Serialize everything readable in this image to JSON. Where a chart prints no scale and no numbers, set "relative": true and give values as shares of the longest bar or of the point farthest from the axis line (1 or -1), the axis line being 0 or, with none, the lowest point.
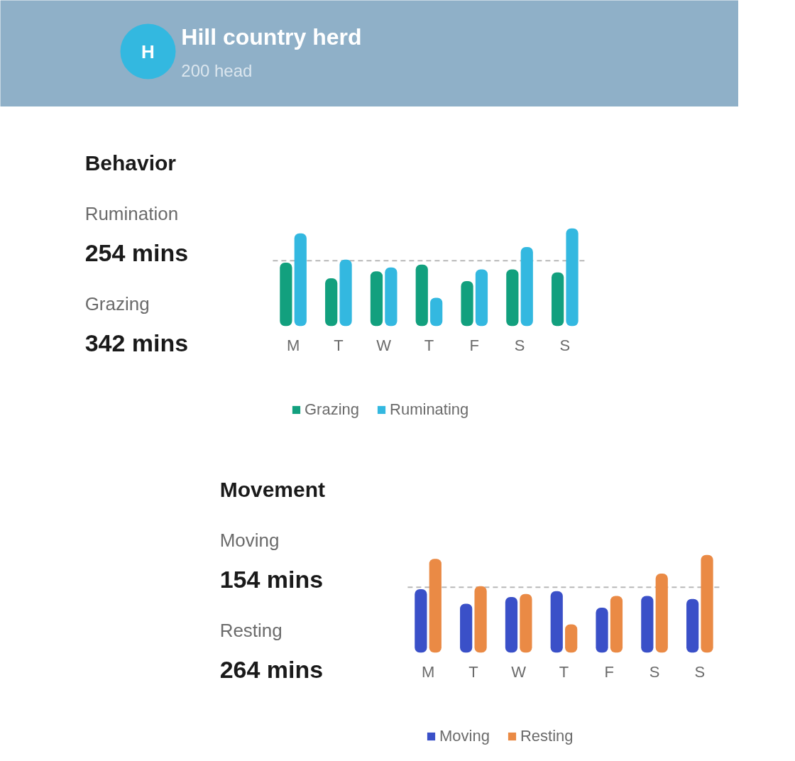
{
  "chart_data": [
    {
      "type": "other",
      "title": "Hill country herd",
      "subtitle": "200 head",
      "annotations": [
        "H"
      ]
    },
    {
      "type": "bar",
      "title": "Behavior",
      "relative": true,
      "categories": [
        "M",
        "T",
        "W",
        "T",
        "F",
        "S",
        "S"
      ],
      "series": [
        {
          "name": "Grazing",
          "color": "#12a07e",
          "values": [
            0.65,
            0.49,
            0.56,
            0.63,
            0.46,
            0.58,
            0.55
          ]
        },
        {
          "name": "Ruminating",
          "color": "#33b8e0",
          "values": [
            0.95,
            0.68,
            0.6,
            0.29,
            0.58,
            0.81,
            1
          ]
        }
      ],
      "ref_lines": [
        {
          "axis": "y",
          "value": 0.67,
          "color": "#b8b8b8",
          "line_style": "dashed"
        }
      ],
      "legend": "bottom",
      "annotations": [
        "Rumination",
        "254 mins",
        "Grazing",
        "342 mins"
      ]
    },
    {
      "type": "bar",
      "title": "Movement",
      "relative": true,
      "categories": [
        "M",
        "T",
        "W",
        "T",
        "F",
        "S",
        "S"
      ],
      "series": [
        {
          "name": "Moving",
          "color": "#3a50c8",
          "values": [
            0.65,
            0.5,
            0.57,
            0.63,
            0.46,
            0.58,
            0.55
          ]
        },
        {
          "name": "Resting",
          "color": "#ea8a45",
          "values": [
            0.96,
            0.68,
            0.6,
            0.29,
            0.58,
            0.81,
            1
          ]
        }
      ],
      "ref_lines": [
        {
          "axis": "y",
          "value": 0.67,
          "color": "#b8b8b8",
          "line_style": "dashed"
        }
      ],
      "legend": "bottom",
      "annotations": [
        "Moving",
        "154 mins",
        "Resting",
        "264 mins"
      ]
    }
  ]
}
